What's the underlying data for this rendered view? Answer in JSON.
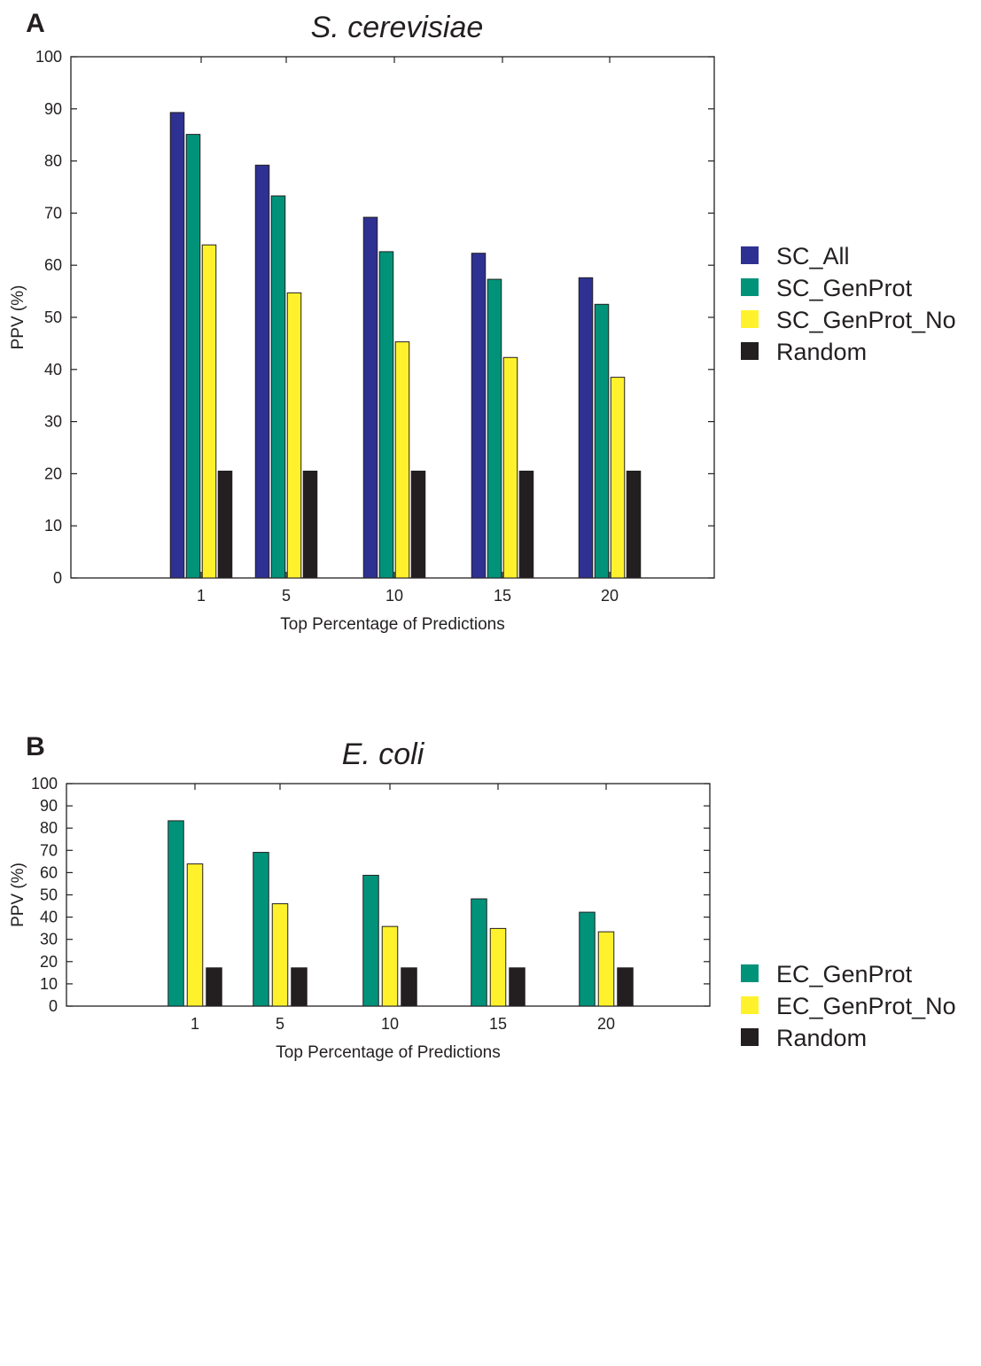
{
  "chart_data": [
    {
      "type": "bar",
      "panel_label": "A",
      "title": "S. cerevisiae",
      "xlabel": "Top Percentage of Predictions",
      "ylabel": "PPV (%)",
      "ylim": [
        0,
        100
      ],
      "yticks": [
        0,
        10,
        20,
        30,
        40,
        50,
        60,
        70,
        80,
        90,
        100
      ],
      "categories": [
        "1",
        "5",
        "10",
        "15",
        "20"
      ],
      "grid": false,
      "legend_position": "right",
      "series": [
        {
          "name": "SC_All",
          "color": "#2e3192",
          "values": [
            89.3,
            79.2,
            69.2,
            62.3,
            57.6
          ]
        },
        {
          "name": "SC_GenProt",
          "color": "#00937a",
          "values": [
            85.1,
            73.3,
            62.6,
            57.3,
            52.5
          ]
        },
        {
          "name": "SC_GenProt_No",
          "color": "#fff22d",
          "values": [
            63.9,
            54.7,
            45.3,
            42.3,
            38.5
          ]
        },
        {
          "name": "Random",
          "color": "#231f20",
          "values": [
            20.5,
            20.5,
            20.5,
            20.5,
            20.5
          ]
        }
      ]
    },
    {
      "type": "bar",
      "panel_label": "B",
      "title": "E. coli",
      "xlabel": "Top Percentage of Predictions",
      "ylabel": "PPV (%)",
      "ylim": [
        0,
        100
      ],
      "yticks": [
        0,
        10,
        20,
        30,
        40,
        50,
        60,
        70,
        80,
        90,
        100
      ],
      "categories": [
        "1",
        "5",
        "10",
        "15",
        "20"
      ],
      "grid": false,
      "legend_position": "right",
      "series": [
        {
          "name": "EC_GenProt",
          "color": "#00937a",
          "values": [
            83.3,
            69.1,
            58.8,
            48.2,
            42.2
          ]
        },
        {
          "name": "EC_GenProt_No",
          "color": "#fff22d",
          "values": [
            63.9,
            46.0,
            35.8,
            34.9,
            33.4
          ]
        },
        {
          "name": "Random",
          "color": "#231f20",
          "values": [
            17.2,
            17.2,
            17.2,
            17.2,
            17.2
          ]
        }
      ]
    }
  ]
}
